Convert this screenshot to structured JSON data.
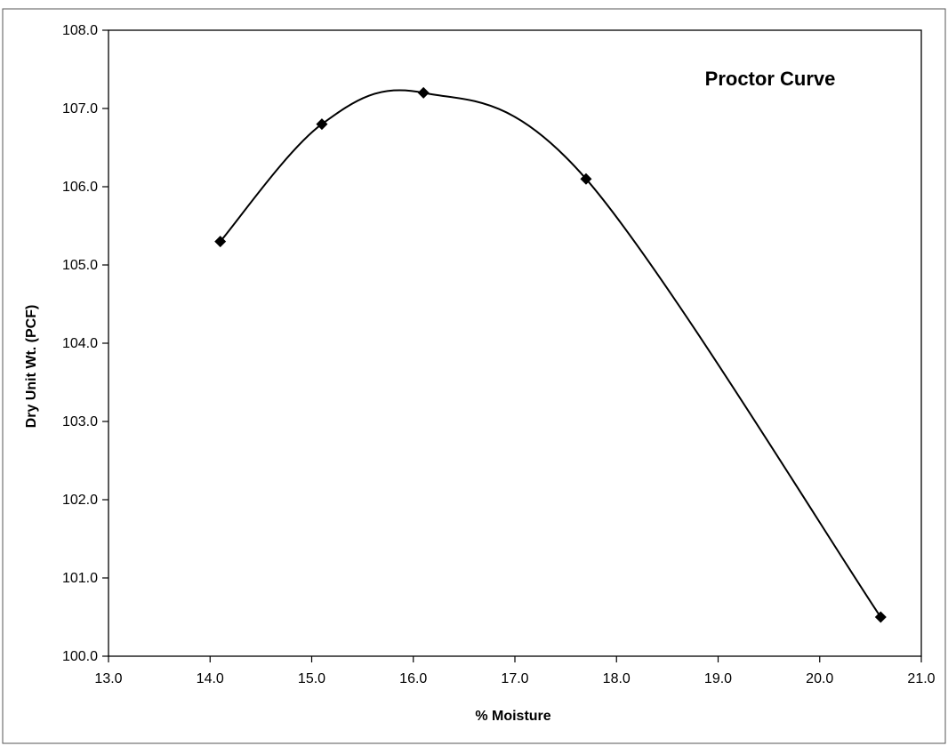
{
  "chart_data": {
    "type": "scatter",
    "title": "Proctor Curve",
    "xlabel": "% Moisture",
    "ylabel": "Dry Unit Wt. (PCF)",
    "xlim": [
      13.0,
      21.0
    ],
    "ylim": [
      100.0,
      108.0
    ],
    "x_ticks": [
      "13.0",
      "14.0",
      "15.0",
      "16.0",
      "17.0",
      "18.0",
      "19.0",
      "20.0",
      "21.0"
    ],
    "y_ticks": [
      "100.0",
      "101.0",
      "102.0",
      "103.0",
      "104.0",
      "105.0",
      "106.0",
      "107.0",
      "108.0"
    ],
    "grid": false,
    "legend": "none",
    "marker": "diamond",
    "smooth_line": true,
    "series": [
      {
        "points": [
          {
            "x": 14.1,
            "y": 105.3
          },
          {
            "x": 15.1,
            "y": 106.8
          },
          {
            "x": 16.1,
            "y": 107.2
          },
          {
            "x": 17.7,
            "y": 106.1
          },
          {
            "x": 20.6,
            "y": 100.5
          }
        ]
      }
    ],
    "colors": {
      "line": "#000000",
      "marker": "#000000",
      "background": "#ffffff"
    }
  }
}
